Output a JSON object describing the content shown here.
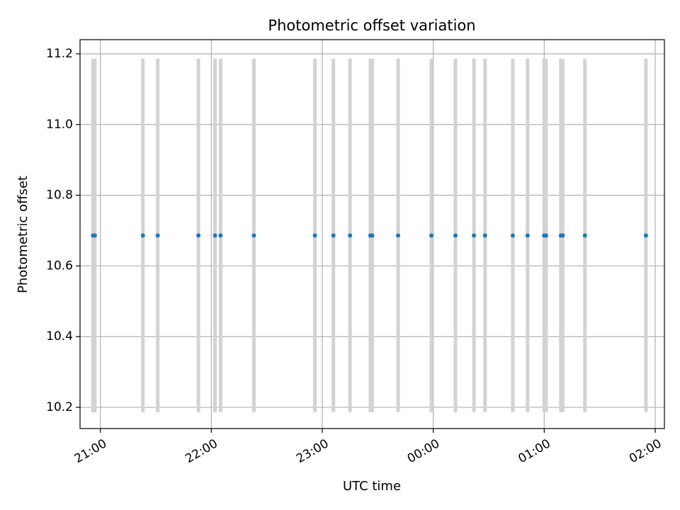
{
  "chart_data": {
    "type": "scatter",
    "title": "Photometric offset variation",
    "xlabel": "UTC time",
    "ylabel": "Photometric offset",
    "x_tick_labels": [
      "21:00",
      "22:00",
      "23:00",
      "00:00",
      "01:00",
      "02:00"
    ],
    "x_ticks": [
      "2024-01-01 21:00",
      "2024-01-01 22:00",
      "2024-01-01 23:00",
      "2024-01-02 00:00",
      "2024-01-02 01:00",
      "2024-01-02 02:00"
    ],
    "y_ticks": [
      10.2,
      10.4,
      10.6,
      10.8,
      11.0,
      11.2
    ],
    "y_tick_labels": [
      "10.2",
      "10.4",
      "10.6",
      "10.8",
      "11.0",
      "11.2"
    ],
    "xlim": [
      "2024-01-01 20:49",
      "2024-01-02 02:05"
    ],
    "ylim": [
      10.14,
      11.24
    ],
    "grid": true,
    "errorbar_color": "#d3d3d3",
    "marker_color": "#1f77b4",
    "points": [
      {
        "x": "2024-01-01 20:56",
        "y": 10.686,
        "yerr": 0.5
      },
      {
        "x": "2024-01-01 20:57",
        "y": 10.686,
        "yerr": 0.5
      },
      {
        "x": "2024-01-01 21:23",
        "y": 10.686,
        "yerr": 0.5
      },
      {
        "x": "2024-01-01 21:31",
        "y": 10.686,
        "yerr": 0.5
      },
      {
        "x": "2024-01-01 21:53",
        "y": 10.686,
        "yerr": 0.5
      },
      {
        "x": "2024-01-01 22:02",
        "y": 10.686,
        "yerr": 0.5
      },
      {
        "x": "2024-01-01 22:05",
        "y": 10.686,
        "yerr": 0.5
      },
      {
        "x": "2024-01-01 22:23",
        "y": 10.686,
        "yerr": 0.5
      },
      {
        "x": "2024-01-01 22:56",
        "y": 10.686,
        "yerr": 0.5
      },
      {
        "x": "2024-01-01 23:06",
        "y": 10.686,
        "yerr": 0.5
      },
      {
        "x": "2024-01-01 23:15",
        "y": 10.686,
        "yerr": 0.5
      },
      {
        "x": "2024-01-01 23:26",
        "y": 10.686,
        "yerr": 0.5
      },
      {
        "x": "2024-01-01 23:27",
        "y": 10.686,
        "yerr": 0.5
      },
      {
        "x": "2024-01-01 23:41",
        "y": 10.686,
        "yerr": 0.5
      },
      {
        "x": "2024-01-01 23:59",
        "y": 10.686,
        "yerr": 0.5
      },
      {
        "x": "2024-01-02 00:12",
        "y": 10.686,
        "yerr": 0.5
      },
      {
        "x": "2024-01-02 00:22",
        "y": 10.686,
        "yerr": 0.5
      },
      {
        "x": "2024-01-02 00:28",
        "y": 10.686,
        "yerr": 0.5
      },
      {
        "x": "2024-01-02 00:43",
        "y": 10.686,
        "yerr": 0.5
      },
      {
        "x": "2024-01-02 00:51",
        "y": 10.686,
        "yerr": 0.5
      },
      {
        "x": "2024-01-02 01:00",
        "y": 10.686,
        "yerr": 0.5
      },
      {
        "x": "2024-01-02 01:01",
        "y": 10.686,
        "yerr": 0.5
      },
      {
        "x": "2024-01-02 01:09",
        "y": 10.686,
        "yerr": 0.5
      },
      {
        "x": "2024-01-02 01:10",
        "y": 10.686,
        "yerr": 0.5
      },
      {
        "x": "2024-01-02 01:22",
        "y": 10.686,
        "yerr": 0.5
      },
      {
        "x": "2024-01-02 01:55",
        "y": 10.686,
        "yerr": 0.5
      }
    ]
  }
}
